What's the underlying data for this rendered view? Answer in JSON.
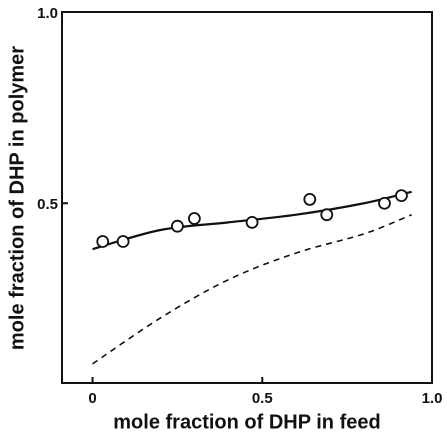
{
  "chart_data": {
    "type": "scatter",
    "xlabel": "mole fraction of DHP in feed",
    "ylabel": "mole fraction of DHP in polymer",
    "xlim": [
      -0.09,
      1.0
    ],
    "ylim": [
      0.03,
      1.0
    ],
    "xticks": [
      0,
      0.5,
      {
        "value": 1.0,
        "label": "1.0"
      }
    ],
    "yticks": [
      0.5,
      {
        "value": 1.0,
        "label": "1.0"
      }
    ],
    "color": "#111111",
    "points": {
      "x": [
        0.03,
        0.09,
        0.25,
        0.3,
        0.47,
        0.64,
        0.69,
        0.86,
        0.91
      ],
      "y": [
        0.4,
        0.4,
        0.44,
        0.46,
        0.45,
        0.51,
        0.47,
        0.5,
        0.52
      ]
    },
    "lines": [
      {
        "x": [
          0,
          0.2,
          0.4,
          0.6,
          0.8,
          0.94
        ],
        "y": [
          0.38,
          0.43,
          0.45,
          0.47,
          0.5,
          0.53
        ],
        "dashed": false
      },
      {
        "x": [
          0,
          0.2,
          0.4,
          0.6,
          0.8,
          0.94
        ],
        "y": [
          0.08,
          0.2,
          0.3,
          0.37,
          0.42,
          0.47
        ],
        "dashed": true
      }
    ]
  }
}
